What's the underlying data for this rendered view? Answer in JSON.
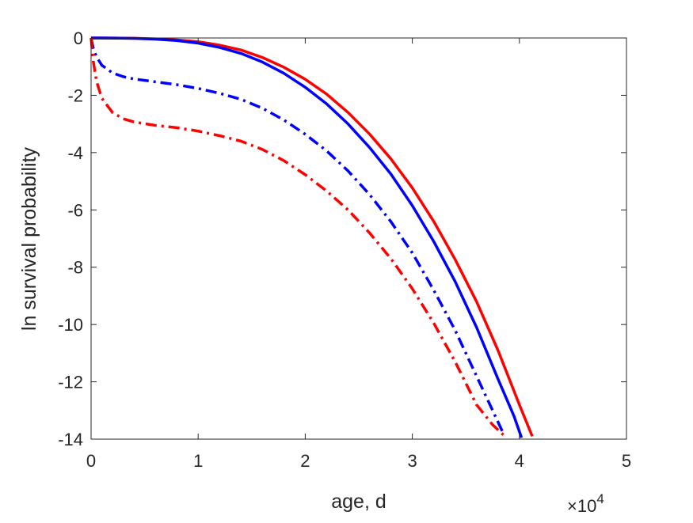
{
  "chart_data": {
    "type": "line",
    "title": "",
    "xlabel": "age, d",
    "ylabel": "ln survival probability",
    "x_exponent_label": "×10",
    "x_exponent_power": "4",
    "xlim": [
      0,
      50000
    ],
    "ylim": [
      -14,
      0
    ],
    "xticks": [
      0,
      10000,
      20000,
      30000,
      40000,
      50000
    ],
    "xtick_labels": [
      "0",
      "1",
      "2",
      "3",
      "4",
      "5"
    ],
    "yticks": [
      -14,
      -12,
      -10,
      -8,
      -6,
      -4,
      -2,
      0
    ],
    "ytick_labels": [
      "-14",
      "-12",
      "-10",
      "-8",
      "-6",
      "-4",
      "-2",
      "0"
    ],
    "grid": false,
    "legend": "none",
    "series": [
      {
        "color": "#ff0000",
        "style": "solid",
        "x": [
          0,
          2000,
          4000,
          6000,
          8000,
          10000,
          12000,
          14000,
          16000,
          18000,
          20000,
          22000,
          24000,
          26000,
          28000,
          30000,
          32000,
          34000,
          36000,
          38000,
          40000,
          41200
        ],
        "y": [
          0,
          -0.003,
          -0.01,
          -0.03,
          -0.07,
          -0.13,
          -0.25,
          -0.42,
          -0.68,
          -1.02,
          -1.44,
          -1.96,
          -2.6,
          -3.35,
          -4.22,
          -5.23,
          -6.4,
          -7.73,
          -9.2,
          -10.9,
          -12.8,
          -13.9
        ]
      },
      {
        "color": "#0000ff",
        "style": "solid",
        "x": [
          0,
          2000,
          4000,
          6000,
          8000,
          10000,
          12000,
          14000,
          16000,
          18000,
          20000,
          22000,
          24000,
          26000,
          28000,
          30000,
          32000,
          34000,
          36000,
          38000,
          39500,
          40200
        ],
        "y": [
          0,
          -0.003,
          -0.015,
          -0.04,
          -0.09,
          -0.18,
          -0.33,
          -0.54,
          -0.84,
          -1.23,
          -1.72,
          -2.3,
          -3.0,
          -3.82,
          -4.75,
          -5.85,
          -7.1,
          -8.5,
          -10.1,
          -11.9,
          -13.2,
          -13.95
        ]
      },
      {
        "color": "#0000ff",
        "style": "dashdot",
        "x": [
          0,
          200,
          500,
          1000,
          2000,
          3000,
          4000,
          6000,
          8000,
          10000,
          12000,
          14000,
          16000,
          18000,
          20000,
          22000,
          24000,
          26000,
          28000,
          30000,
          32000,
          34000,
          36000,
          37500,
          38500
        ],
        "y": [
          0,
          -0.35,
          -0.65,
          -0.95,
          -1.22,
          -1.35,
          -1.43,
          -1.53,
          -1.63,
          -1.76,
          -1.93,
          -2.14,
          -2.45,
          -2.86,
          -3.36,
          -3.94,
          -4.64,
          -5.46,
          -6.41,
          -7.5,
          -8.8,
          -10.2,
          -11.8,
          -13.0,
          -13.8
        ]
      },
      {
        "color": "#ff0000",
        "style": "dashdot",
        "x": [
          0,
          200,
          500,
          1000,
          2000,
          3000,
          4000,
          6000,
          8000,
          10000,
          12000,
          14000,
          16000,
          18000,
          20000,
          22000,
          24000,
          26000,
          28000,
          30000,
          32000,
          34000,
          36000,
          37500,
          38500
        ],
        "y": [
          0,
          -0.8,
          -1.5,
          -2.1,
          -2.6,
          -2.82,
          -2.93,
          -3.05,
          -3.13,
          -3.25,
          -3.41,
          -3.6,
          -3.89,
          -4.28,
          -4.77,
          -5.34,
          -6.0,
          -6.8,
          -7.7,
          -8.75,
          -9.95,
          -11.3,
          -12.8,
          -13.5,
          -13.85
        ]
      }
    ]
  }
}
